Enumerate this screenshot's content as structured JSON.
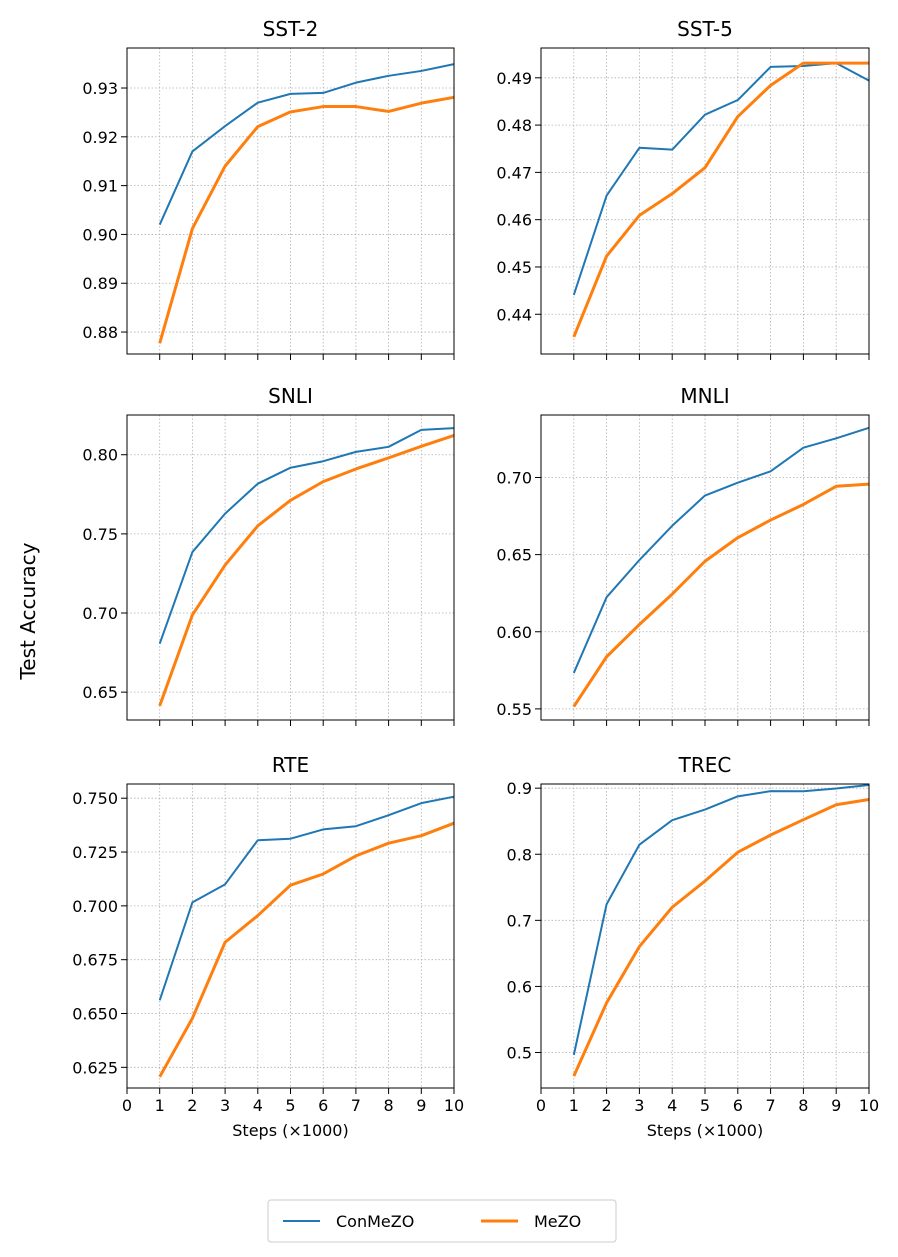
{
  "colors": {
    "conmezo": "#1f77b4",
    "mezo": "#ff7f0e",
    "grid": "#b0b0b0",
    "axis": "#000000"
  },
  "figure": {
    "ylabel": "Test Accuracy"
  },
  "legend": {
    "entries": [
      "ConMeZO",
      "MeZO"
    ],
    "location": "bottom-center"
  },
  "chart_data": [
    {
      "type": "line",
      "title": "SST-2",
      "xlabel": "",
      "x": [
        1,
        2,
        3,
        4,
        5,
        6,
        7,
        8,
        9,
        10
      ],
      "xlim": [
        0,
        10
      ],
      "ylim": [
        0.8755,
        0.9382
      ],
      "xticks": [
        1,
        2,
        3,
        4,
        5,
        6,
        7,
        8,
        9,
        10
      ],
      "yticks": [
        0.88,
        0.89,
        0.9,
        0.91,
        0.92,
        0.93
      ],
      "ytick_labels": [
        "0.88",
        "0.89",
        "0.90",
        "0.91",
        "0.92",
        "0.93"
      ],
      "grid": true,
      "series": [
        {
          "name": "ConMeZO",
          "values": [
            0.902,
            0.917,
            0.9222,
            0.927,
            0.9288,
            0.929,
            0.9311,
            0.9325,
            0.9335,
            0.9349
          ]
        },
        {
          "name": "MeZO",
          "values": [
            0.8777,
            0.9012,
            0.914,
            0.9221,
            0.9251,
            0.9262,
            0.9262,
            0.9252,
            0.9269,
            0.9281
          ]
        }
      ]
    },
    {
      "type": "line",
      "title": "SST-5",
      "xlabel": "",
      "x": [
        1,
        2,
        3,
        4,
        5,
        6,
        7,
        8,
        9,
        10
      ],
      "xlim": [
        0,
        10
      ],
      "ylim": [
        0.4316,
        0.4963
      ],
      "xticks": [
        1,
        2,
        3,
        4,
        5,
        6,
        7,
        8,
        9,
        10
      ],
      "yticks": [
        0.44,
        0.45,
        0.46,
        0.47,
        0.48,
        0.49
      ],
      "ytick_labels": [
        "0.44",
        "0.45",
        "0.46",
        "0.47",
        "0.48",
        "0.49"
      ],
      "grid": true,
      "series": [
        {
          "name": "ConMeZO",
          "values": [
            0.4441,
            0.4651,
            0.4752,
            0.4748,
            0.4822,
            0.4853,
            0.4923,
            0.4925,
            0.4931,
            0.4894
          ]
        },
        {
          "name": "MeZO",
          "values": [
            0.4352,
            0.4523,
            0.4609,
            0.4655,
            0.471,
            0.4818,
            0.4884,
            0.4931,
            0.4931,
            0.4931
          ]
        }
      ]
    },
    {
      "type": "line",
      "title": "SNLI",
      "xlabel": "",
      "x": [
        1,
        2,
        3,
        4,
        5,
        6,
        7,
        8,
        9,
        10
      ],
      "xlim": [
        0,
        10
      ],
      "ylim": [
        0.6324,
        0.8251
      ],
      "xticks": [
        1,
        2,
        3,
        4,
        5,
        6,
        7,
        8,
        9,
        10
      ],
      "yticks": [
        0.65,
        0.7,
        0.75,
        0.8
      ],
      "ytick_labels": [
        "0.65",
        "0.70",
        "0.75",
        "0.80"
      ],
      "grid": true,
      "series": [
        {
          "name": "ConMeZO",
          "values": [
            0.6806,
            0.7385,
            0.7628,
            0.7817,
            0.7918,
            0.7959,
            0.8018,
            0.805,
            0.8157,
            0.8168
          ]
        },
        {
          "name": "MeZO",
          "values": [
            0.6414,
            0.6988,
            0.7303,
            0.7551,
            0.7712,
            0.783,
            0.791,
            0.798,
            0.8053,
            0.8122
          ]
        }
      ]
    },
    {
      "type": "line",
      "title": "MNLI",
      "xlabel": "",
      "x": [
        1,
        2,
        3,
        4,
        5,
        6,
        7,
        8,
        9,
        10
      ],
      "xlim": [
        0,
        10
      ],
      "ylim": [
        0.5428,
        0.7405
      ],
      "xticks": [
        1,
        2,
        3,
        4,
        5,
        6,
        7,
        8,
        9,
        10
      ],
      "yticks": [
        0.55,
        0.6,
        0.65,
        0.7
      ],
      "ytick_labels": [
        "0.55",
        "0.60",
        "0.65",
        "0.70"
      ],
      "grid": true,
      "series": [
        {
          "name": "ConMeZO",
          "values": [
            0.5733,
            0.6224,
            0.6465,
            0.6687,
            0.6883,
            0.6966,
            0.704,
            0.7193,
            0.7254,
            0.7322
          ]
        },
        {
          "name": "MeZO",
          "values": [
            0.5515,
            0.5838,
            0.6047,
            0.6244,
            0.6457,
            0.661,
            0.6724,
            0.6825,
            0.6943,
            0.6957
          ]
        }
      ]
    },
    {
      "type": "line",
      "title": "RTE",
      "xlabel": "Steps (×1000)",
      "x": [
        1,
        2,
        3,
        4,
        5,
        6,
        7,
        8,
        9,
        10
      ],
      "xlim": [
        0,
        10
      ],
      "ylim": [
        0.6154,
        0.7566
      ],
      "xticks": [
        0,
        1,
        2,
        3,
        4,
        5,
        6,
        7,
        8,
        9,
        10
      ],
      "xtick_labels": [
        "0",
        "1",
        "2",
        "3",
        "4",
        "5",
        "6",
        "7",
        "8",
        "9",
        "10"
      ],
      "yticks": [
        0.625,
        0.65,
        0.675,
        0.7,
        0.725,
        0.75
      ],
      "ytick_labels": [
        "0.625",
        "0.650",
        "0.675",
        "0.700",
        "0.725",
        "0.750"
      ],
      "grid": true,
      "series": [
        {
          "name": "ConMeZO",
          "values": [
            0.6561,
            0.7016,
            0.71,
            0.7305,
            0.7312,
            0.7355,
            0.737,
            0.7421,
            0.7477,
            0.7507
          ]
        },
        {
          "name": "MeZO",
          "values": [
            0.6206,
            0.6478,
            0.6831,
            0.6955,
            0.7096,
            0.7148,
            0.7232,
            0.7291,
            0.7326,
            0.7384
          ]
        }
      ]
    },
    {
      "type": "line",
      "title": "TREC",
      "xlabel": "Steps (×1000)",
      "x": [
        1,
        2,
        3,
        4,
        5,
        6,
        7,
        8,
        9,
        10
      ],
      "xlim": [
        0,
        10
      ],
      "ylim": [
        0.4463,
        0.9063
      ],
      "xticks": [
        0,
        1,
        2,
        3,
        4,
        5,
        6,
        7,
        8,
        9,
        10
      ],
      "xtick_labels": [
        "0",
        "1",
        "2",
        "3",
        "4",
        "5",
        "6",
        "7",
        "8",
        "9",
        "10"
      ],
      "yticks": [
        0.5,
        0.6,
        0.7,
        0.8,
        0.9
      ],
      "ytick_labels": [
        "0.5",
        "0.6",
        "0.7",
        "0.8",
        "0.9"
      ],
      "grid": true,
      "series": [
        {
          "name": "ConMeZO",
          "values": [
            0.4962,
            0.7244,
            0.8145,
            0.8516,
            0.8676,
            0.8876,
            0.8955,
            0.8953,
            0.8995,
            0.9048
          ]
        },
        {
          "name": "MeZO",
          "values": [
            0.4642,
            0.5752,
            0.6603,
            0.7198,
            0.7595,
            0.8031,
            0.8291,
            0.8523,
            0.8749,
            0.8829
          ]
        }
      ]
    }
  ]
}
